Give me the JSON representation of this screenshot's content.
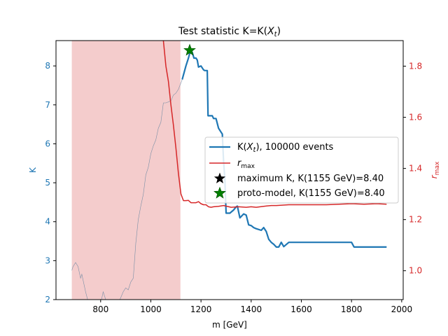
{
  "chart_data": {
    "type": "line",
    "title_main": "Test statistic K=K(",
    "title_var": "X",
    "title_sub": "t",
    "title_close": ")",
    "xlabel": "m [GeV]",
    "ylabel_left": "K",
    "ylabel_right_main": "r",
    "ylabel_right_sub": "max",
    "xlim": [
      622,
      2006
    ],
    "ylim_left": [
      2.0,
      8.65
    ],
    "ylim_right": [
      0.887,
      1.9
    ],
    "x_ticks": [
      "800",
      "1000",
      "1200",
      "1400",
      "1600",
      "1800",
      "2000"
    ],
    "x_tick_values": [
      800,
      1000,
      1200,
      1400,
      1600,
      1800,
      2000
    ],
    "y_ticks_left": [
      "2",
      "3",
      "4",
      "5",
      "6",
      "7",
      "8"
    ],
    "y_tick_values_left": [
      2,
      3,
      4,
      5,
      6,
      7,
      8
    ],
    "y_ticks_right": [
      "1.0",
      "1.2",
      "1.4",
      "1.6",
      "1.8"
    ],
    "y_tick_values_right": [
      1.0,
      1.2,
      1.4,
      1.6,
      1.8
    ],
    "shaded_region": {
      "x": [
        685,
        1118
      ],
      "color": "#f4cccc"
    },
    "colors": {
      "K": "#1f77b4",
      "rmax": "#d62728",
      "thin": "#7a8fa6",
      "star_max": "#000000",
      "star_proto": "#008000",
      "right_axis": "#d62728",
      "left_axis": "#1f77b4"
    },
    "series_K": {
      "x": [
        1125,
        1140,
        1150,
        1158,
        1165,
        1172,
        1180,
        1185,
        1190,
        1200,
        1210,
        1215,
        1225,
        1228,
        1245,
        1250,
        1260,
        1270,
        1275,
        1280,
        1285,
        1290,
        1295,
        1300,
        1315,
        1330,
        1340,
        1345,
        1355,
        1370,
        1380,
        1390,
        1400,
        1410,
        1420,
        1440,
        1450,
        1460,
        1470,
        1480,
        1490,
        1500,
        1510,
        1520,
        1530,
        1550,
        1800,
        1810,
        1940
      ],
      "y": [
        7.65,
        8.0,
        8.2,
        8.39,
        8.35,
        8.2,
        8.2,
        8.15,
        7.97,
        8.0,
        7.9,
        7.88,
        7.88,
        6.72,
        6.72,
        6.65,
        6.65,
        6.4,
        6.35,
        6.3,
        6.25,
        5.55,
        5.1,
        4.22,
        4.22,
        4.3,
        4.38,
        4.4,
        4.1,
        4.2,
        4.17,
        3.92,
        3.9,
        3.85,
        3.82,
        3.78,
        3.85,
        3.75,
        3.55,
        3.47,
        3.42,
        3.35,
        3.35,
        3.47,
        3.36,
        3.47,
        3.47,
        3.35,
        3.35
      ]
    },
    "series_K_thin": {
      "x": [
        685,
        690,
        700,
        710,
        720,
        725,
        730,
        740,
        750,
        755,
        760,
        765,
        770,
        780,
        790,
        800,
        810,
        820,
        830,
        840,
        850,
        860,
        870,
        880,
        890,
        900,
        910,
        920,
        925,
        930,
        940,
        950,
        960,
        970,
        980,
        990,
        1000,
        1010,
        1020,
        1030,
        1040,
        1050,
        1060,
        1080,
        1090,
        1100,
        1110,
        1125
      ],
      "y": [
        2.75,
        2.85,
        2.95,
        2.85,
        2.55,
        2.65,
        2.5,
        2.2,
        1.95,
        1.9,
        1.85,
        1.75,
        1.7,
        1.55,
        1.6,
        1.9,
        2.2,
        2.0,
        1.7,
        1.6,
        1.75,
        1.95,
        1.9,
        2.05,
        2.2,
        2.3,
        2.25,
        2.45,
        2.5,
        2.55,
        3.45,
        4.05,
        4.4,
        4.7,
        5.2,
        5.4,
        5.75,
        5.95,
        6.1,
        6.4,
        6.55,
        7.05,
        7.05,
        7.1,
        7.25,
        7.3,
        7.4,
        7.65
      ]
    },
    "series_rmax": {
      "x": [
        1050,
        1060,
        1070,
        1080,
        1090,
        1100,
        1110,
        1120,
        1130,
        1140,
        1150,
        1160,
        1170,
        1180,
        1190,
        1200,
        1210,
        1220,
        1230,
        1240,
        1250,
        1270,
        1290,
        1320,
        1350,
        1380,
        1400,
        1420,
        1450,
        1480,
        1500,
        1550,
        1600,
        1650,
        1700,
        1750,
        1800,
        1850,
        1900,
        1940
      ],
      "y": [
        1.9,
        1.8,
        1.74,
        1.65,
        1.57,
        1.48,
        1.38,
        1.3,
        1.274,
        1.274,
        1.275,
        1.266,
        1.266,
        1.266,
        1.27,
        1.262,
        1.258,
        1.258,
        1.25,
        1.248,
        1.25,
        1.252,
        1.255,
        1.248,
        1.25,
        1.248,
        1.25,
        1.248,
        1.252,
        1.255,
        1.255,
        1.258,
        1.258,
        1.258,
        1.258,
        1.26,
        1.262,
        1.26,
        1.262,
        1.26
      ]
    },
    "star_max": {
      "x": 1155,
      "y": 8.4
    },
    "star_proto": {
      "x": 1155,
      "y": 8.4
    },
    "legend": {
      "placement": "center-right",
      "entries": [
        {
          "label_pre": "K(",
          "label_var": "X",
          "label_sub": "t",
          "label_post": "), 100000 events"
        },
        {
          "label_var": "r",
          "label_sub": "max",
          "label_post": ""
        },
        {
          "label_pre": "maximum K, K(1155 GeV)=8.40"
        },
        {
          "label_pre": "proto-model, K(1155 GeV)=8.40"
        }
      ]
    }
  }
}
